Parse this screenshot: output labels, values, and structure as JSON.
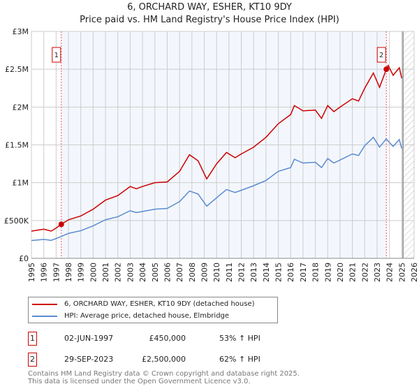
{
  "chart_data": {
    "type": "line",
    "title": "6, ORCHARD WAY, ESHER, KT10 9DY",
    "subtitle": "Price paid vs. HM Land Registry's House Price Index (HPI)",
    "xlim": [
      1995,
      2026
    ],
    "ylim": [
      0,
      3000000
    ],
    "y_ticks": [
      {
        "v": 0,
        "label": "£0"
      },
      {
        "v": 500000,
        "label": "£500K"
      },
      {
        "v": 1000000,
        "label": "£1M"
      },
      {
        "v": 1500000,
        "label": "£1.5M"
      },
      {
        "v": 2000000,
        "label": "£2M"
      },
      {
        "v": 2500000,
        "label": "£2.5M"
      },
      {
        "v": 3000000,
        "label": "£3M"
      }
    ],
    "x_ticks": [
      "1995",
      "1996",
      "1997",
      "1998",
      "1999",
      "2000",
      "2001",
      "2002",
      "2003",
      "2004",
      "2005",
      "2006",
      "2007",
      "2008",
      "2009",
      "2010",
      "2011",
      "2012",
      "2013",
      "2014",
      "2015",
      "2016",
      "2017",
      "2018",
      "2019",
      "2020",
      "2021",
      "2022",
      "2023",
      "2024",
      "2025",
      "2026"
    ],
    "grid": true,
    "data_end_year": 2025.1,
    "series": [
      {
        "name": "6, ORCHARD WAY, ESHER, KT10 9DY (detached house)",
        "color": "#cc0000",
        "x": [
          1995,
          1996,
          1996.6,
          1997,
          1997.42,
          1998,
          1999,
          2000,
          2001,
          2002,
          2003,
          2003.5,
          2004,
          2005,
          2006,
          2007,
          2007.8,
          2008.5,
          2009.2,
          2010,
          2010.8,
          2011.5,
          2012,
          2013,
          2014,
          2015,
          2016,
          2016.3,
          2017,
          2018,
          2018.5,
          2019,
          2019.5,
          2020,
          2021,
          2021.5,
          2022,
          2022.7,
          2023.2,
          2023.75,
          2023.9,
          2024.3,
          2024.8,
          2025
        ],
        "y": [
          360000,
          385000,
          360000,
          400000,
          450000,
          510000,
          560000,
          650000,
          770000,
          830000,
          950000,
          920000,
          950000,
          1000000,
          1010000,
          1150000,
          1370000,
          1290000,
          1050000,
          1250000,
          1400000,
          1330000,
          1380000,
          1470000,
          1600000,
          1780000,
          1900000,
          2020000,
          1950000,
          1960000,
          1850000,
          2020000,
          1940000,
          2000000,
          2110000,
          2080000,
          2250000,
          2450000,
          2260000,
          2500000,
          2550000,
          2420000,
          2520000,
          2380000
        ]
      },
      {
        "name": "HPI: Average price, detached house, Elmbridge",
        "color": "#5b8bd0",
        "x": [
          1995,
          1996,
          1996.6,
          1997,
          1997.42,
          1998,
          1999,
          2000,
          2001,
          2002,
          2003,
          2003.5,
          2004,
          2005,
          2006,
          2007,
          2007.8,
          2008.5,
          2009.2,
          2010,
          2010.8,
          2011.5,
          2012,
          2013,
          2014,
          2015,
          2016,
          2016.3,
          2017,
          2018,
          2018.5,
          2019,
          2019.5,
          2020,
          2021,
          2021.5,
          2022,
          2022.7,
          2023.2,
          2023.75,
          2023.9,
          2024.3,
          2024.8,
          2025
        ],
        "y": [
          235000,
          250000,
          238000,
          262000,
          290000,
          330000,
          365000,
          430000,
          510000,
          550000,
          630000,
          605000,
          620000,
          650000,
          660000,
          750000,
          890000,
          850000,
          690000,
          800000,
          910000,
          870000,
          900000,
          960000,
          1030000,
          1150000,
          1200000,
          1310000,
          1260000,
          1270000,
          1200000,
          1320000,
          1260000,
          1300000,
          1380000,
          1360000,
          1490000,
          1600000,
          1470000,
          1580000,
          1550000,
          1480000,
          1570000,
          1450000
        ]
      }
    ],
    "annotations": [
      {
        "label": "1",
        "x": 1997.42,
        "y": 450000
      },
      {
        "label": "2",
        "x": 2023.75,
        "y": 2500000
      }
    ]
  },
  "legend": {
    "items": [
      "6, ORCHARD WAY, ESHER, KT10 9DY (detached house)",
      "HPI: Average price, detached house, Elmbridge"
    ],
    "colors": [
      "#cc0000",
      "#5b8bd0"
    ]
  },
  "sales": [
    {
      "num": "1",
      "date": "02-JUN-1997",
      "price": "£450,000",
      "hpi": "53% ↑ HPI"
    },
    {
      "num": "2",
      "date": "29-SEP-2023",
      "price": "£2,500,000",
      "hpi": "62% ↑ HPI"
    }
  ],
  "footer": [
    "Contains HM Land Registry data © Crown copyright and database right 2025.",
    "This data is licensed under the Open Government Licence v3.0."
  ]
}
